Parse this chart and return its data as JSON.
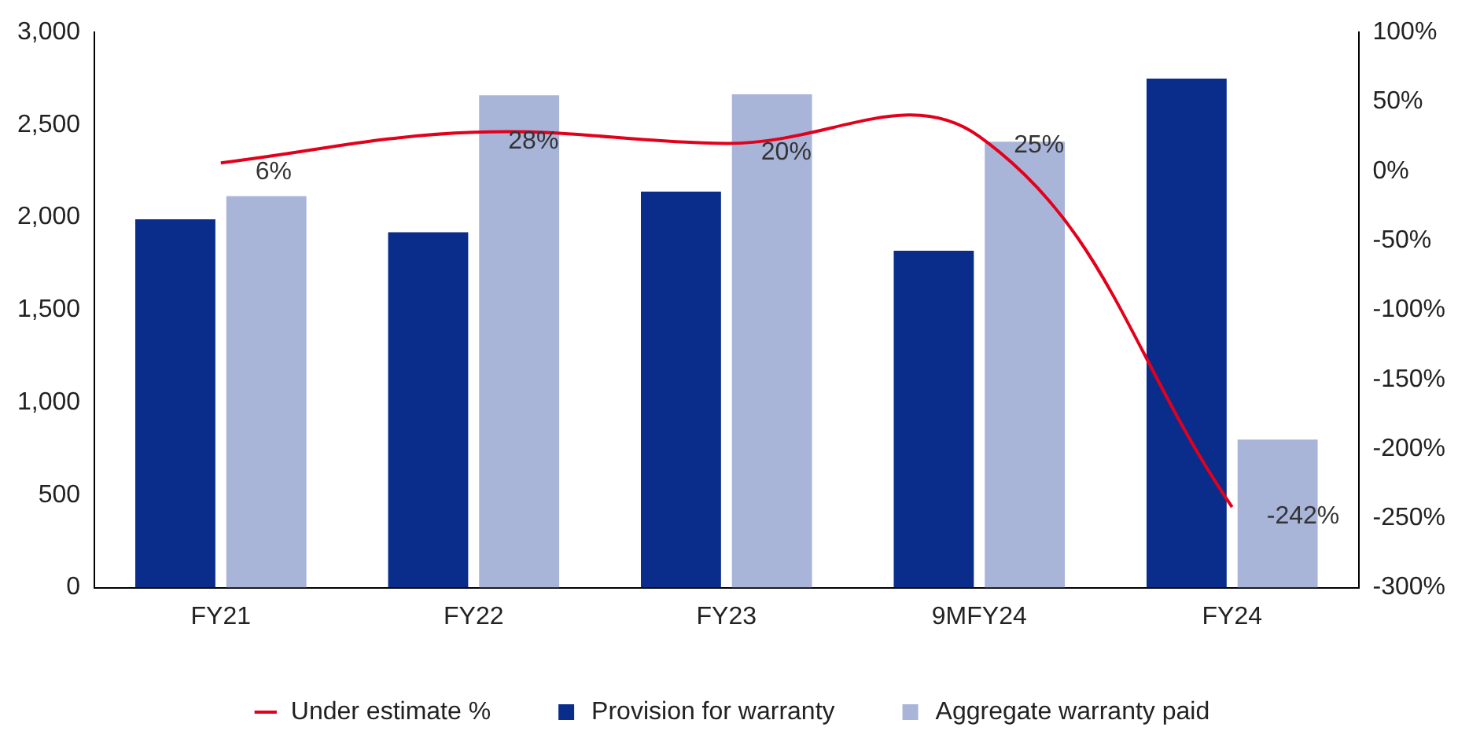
{
  "chart_data": {
    "type": "bar",
    "categories": [
      "FY21",
      "FY22",
      "FY23",
      "9MFY24",
      "FY24"
    ],
    "series": [
      {
        "name": "Provision for warranty",
        "color": "#0a2d8c",
        "values": [
          1990,
          1920,
          2140,
          1820,
          2750
        ]
      },
      {
        "name": "Aggregate warranty paid",
        "color": "#a9b4d9",
        "values": [
          2115,
          2660,
          2665,
          2410,
          800
        ]
      },
      {
        "name": "Under estimate %",
        "type": "line",
        "axis": "y2",
        "color": "#e3001b",
        "values": [
          6,
          28,
          20,
          25,
          -242
        ],
        "value_labels": [
          "6%",
          "28%",
          "20%",
          "25%",
          "-242%"
        ]
      }
    ],
    "ylim": [
      0,
      3000
    ],
    "yticks": [
      {
        "value": 0,
        "label": "0"
      },
      {
        "value": 500,
        "label": "500"
      },
      {
        "value": 1000,
        "label": "1,000"
      },
      {
        "value": 1500,
        "label": "1,500"
      },
      {
        "value": 2000,
        "label": "2,000"
      },
      {
        "value": 2500,
        "label": "2,500"
      },
      {
        "value": 3000,
        "label": "3,000"
      }
    ],
    "y2lim": [
      -300,
      100
    ],
    "y2ticks": [
      {
        "value": -300,
        "label": "-300%"
      },
      {
        "value": -250,
        "label": "-250%"
      },
      {
        "value": -200,
        "label": "-200%"
      },
      {
        "value": -150,
        "label": "-150%"
      },
      {
        "value": -100,
        "label": "-100%"
      },
      {
        "value": -50,
        "label": "-50%"
      },
      {
        "value": 0,
        "label": "0%"
      },
      {
        "value": 50,
        "label": "50%"
      },
      {
        "value": 100,
        "label": "100%"
      }
    ],
    "grid": false,
    "legend": "bottom",
    "marker": "none"
  }
}
